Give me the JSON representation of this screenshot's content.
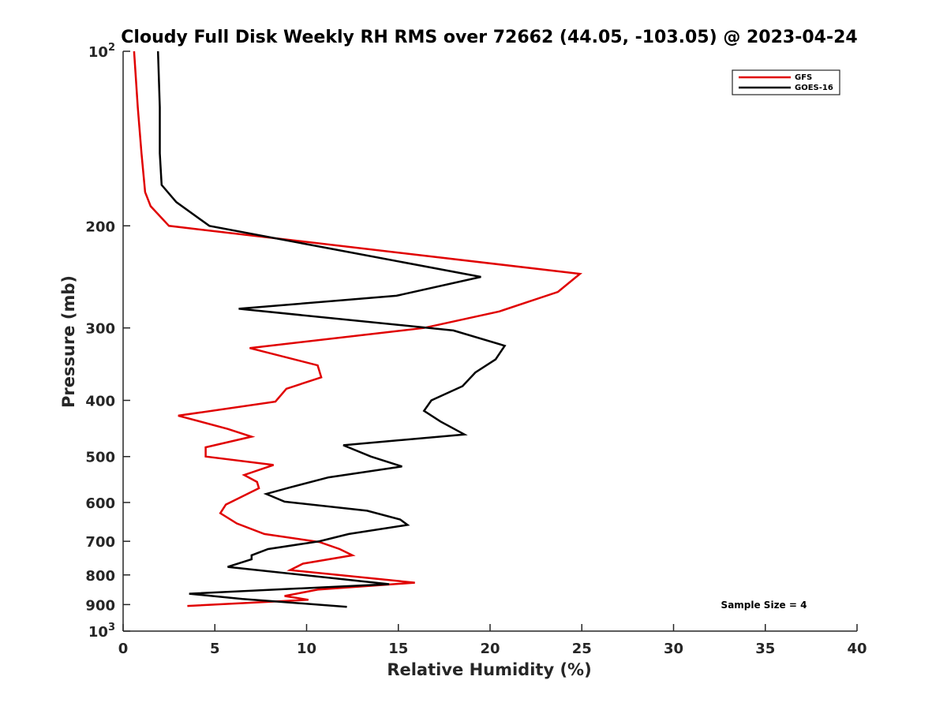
{
  "chart_data": {
    "type": "line",
    "title": "Cloudy Full Disk Weekly RH RMS over 72662 (44.05, -103.05) @ 2023-04-24",
    "xlabel": "Relative Humidity (%)",
    "ylabel": "Pressure (mb)",
    "xlim": [
      0,
      40
    ],
    "ylim": [
      100,
      1000
    ],
    "yscale": "log",
    "y_reversed": true,
    "xticks": [
      0,
      5,
      10,
      15,
      20,
      25,
      30,
      35,
      40
    ],
    "yticks": [
      {
        "value": 100,
        "label_base": "10",
        "label_exp": "2"
      },
      {
        "value": 200,
        "label_base": "200",
        "label_exp": ""
      },
      {
        "value": 300,
        "label_base": "300",
        "label_exp": ""
      },
      {
        "value": 400,
        "label_base": "400",
        "label_exp": ""
      },
      {
        "value": 500,
        "label_base": "500",
        "label_exp": ""
      },
      {
        "value": 600,
        "label_base": "600",
        "label_exp": ""
      },
      {
        "value": 700,
        "label_base": "700",
        "label_exp": ""
      },
      {
        "value": 800,
        "label_base": "800",
        "label_exp": ""
      },
      {
        "value": 900,
        "label_base": "900",
        "label_exp": ""
      },
      {
        "value": 1000,
        "label_base": "10",
        "label_exp": "3"
      }
    ],
    "grid": false,
    "legend_position": "top-right",
    "annotation": "Sample Size = 4",
    "series": [
      {
        "name": "GFS",
        "color": "#e00000",
        "points": [
          [
            0.6,
            100
          ],
          [
            0.8,
            125
          ],
          [
            1.0,
            150
          ],
          [
            1.2,
            175
          ],
          [
            1.5,
            185
          ],
          [
            2.5,
            200
          ],
          [
            24.9,
            242
          ],
          [
            23.7,
            260
          ],
          [
            20.5,
            281
          ],
          [
            16.4,
            300
          ],
          [
            6.9,
            325
          ],
          [
            10.6,
            348
          ],
          [
            10.8,
            365
          ],
          [
            8.9,
            382
          ],
          [
            8.3,
            402
          ],
          [
            3.0,
            425
          ],
          [
            5.7,
            448
          ],
          [
            7.0,
            462
          ],
          [
            4.5,
            482
          ],
          [
            4.5,
            500
          ],
          [
            8.2,
            517
          ],
          [
            6.6,
            538
          ],
          [
            7.3,
            553
          ],
          [
            7.4,
            567
          ],
          [
            5.6,
            605
          ],
          [
            5.3,
            626
          ],
          [
            6.2,
            652
          ],
          [
            7.7,
            680
          ],
          [
            10.7,
            702
          ],
          [
            11.8,
            722
          ],
          [
            12.5,
            740
          ],
          [
            9.8,
            765
          ],
          [
            9.1,
            785
          ],
          [
            15.9,
            825
          ],
          [
            10.6,
            848
          ],
          [
            8.8,
            870
          ],
          [
            10.1,
            883
          ],
          [
            3.5,
            905
          ]
        ]
      },
      {
        "name": "GOES-16",
        "color": "#000000",
        "points": [
          [
            1.9,
            100
          ],
          [
            2.0,
            125
          ],
          [
            2.0,
            150
          ],
          [
            2.1,
            170
          ],
          [
            2.9,
            182
          ],
          [
            4.7,
            200
          ],
          [
            19.5,
            245
          ],
          [
            14.9,
            264
          ],
          [
            6.3,
            278
          ],
          [
            18.0,
            303
          ],
          [
            20.8,
            322
          ],
          [
            20.3,
            340
          ],
          [
            19.2,
            358
          ],
          [
            18.5,
            378
          ],
          [
            16.8,
            400
          ],
          [
            16.4,
            417
          ],
          [
            17.3,
            435
          ],
          [
            18.6,
            458
          ],
          [
            12.0,
            478
          ],
          [
            13.5,
            500
          ],
          [
            15.2,
            520
          ],
          [
            11.2,
            543
          ],
          [
            9.1,
            565
          ],
          [
            7.8,
            580
          ],
          [
            8.8,
            598
          ],
          [
            13.3,
            620
          ],
          [
            15.1,
            642
          ],
          [
            15.5,
            656
          ],
          [
            12.3,
            680
          ],
          [
            10.7,
            700
          ],
          [
            7.9,
            722
          ],
          [
            7.0,
            740
          ],
          [
            7.0,
            752
          ],
          [
            5.7,
            775
          ],
          [
            14.5,
            830
          ],
          [
            3.6,
            862
          ],
          [
            6.5,
            880
          ],
          [
            12.2,
            908
          ]
        ]
      }
    ]
  }
}
